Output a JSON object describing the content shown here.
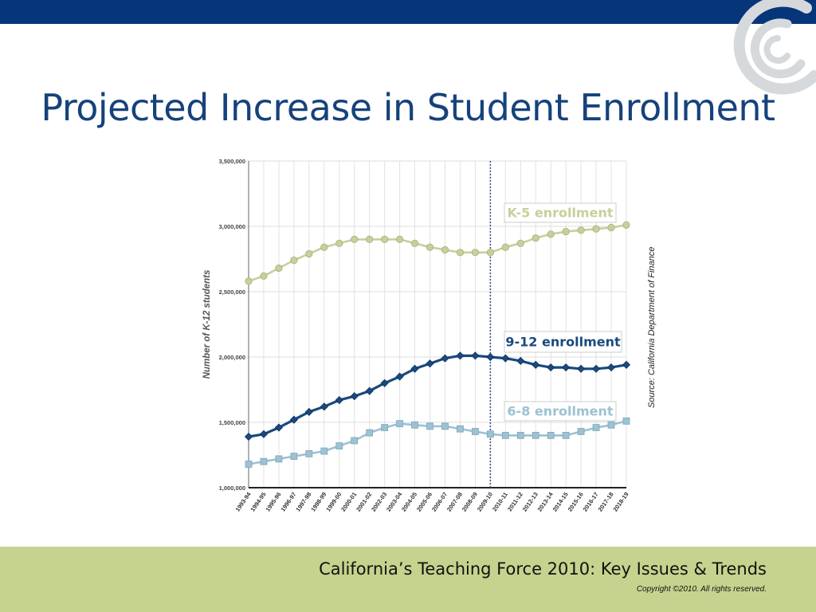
{
  "slide": {
    "title": "Projected Increase in Student Enrollment",
    "source": "Source: California Department of Finance",
    "footer_title": "California’s Teaching Force 2010: Key Issues & Trends",
    "footer_copyright": "Copyright ©2010. All rights reserved."
  },
  "colors": {
    "top_bar": "#06357a",
    "title": "#16427c",
    "footer": "#c6d38e",
    "k5": "#c8cf9c",
    "grade912": "#1a4a7f",
    "grade68": "#9cc2d3"
  },
  "chart_data": {
    "type": "line",
    "title": "",
    "xlabel": "",
    "ylabel": "Number of K-12 students",
    "ylim": [
      1000000,
      3500000
    ],
    "yticks": [
      "1,000,000",
      "1,500,000",
      "2,000,000",
      "2,500,000",
      "3,000,000",
      "3,500,000"
    ],
    "grid": true,
    "projection_start": "2009-10",
    "categories": [
      "1993-94",
      "1994-95",
      "1995-96",
      "1996-97",
      "1997-98",
      "1998-99",
      "1999-00",
      "2000-01",
      "2001-02",
      "2002-03",
      "2003-04",
      "2004-05",
      "2005-06",
      "2006-07",
      "2007-08",
      "2008-09",
      "2009-10",
      "2010-11",
      "2011-12",
      "2012-13",
      "2013-14",
      "2014-15",
      "2015-16",
      "2016-17",
      "2017-18",
      "2018-19"
    ],
    "series": [
      {
        "name": "K-5 enrollment",
        "color": "#c8cf9c",
        "marker": "circle",
        "values": [
          2580000,
          2620000,
          2680000,
          2740000,
          2790000,
          2840000,
          2870000,
          2900000,
          2900000,
          2900000,
          2900000,
          2870000,
          2840000,
          2820000,
          2800000,
          2800000,
          2800000,
          2840000,
          2870000,
          2910000,
          2940000,
          2960000,
          2970000,
          2980000,
          2990000,
          3010000
        ]
      },
      {
        "name": "9-12 enrollment",
        "color": "#1a4a7f",
        "marker": "diamond",
        "values": [
          1390000,
          1410000,
          1460000,
          1520000,
          1580000,
          1620000,
          1670000,
          1700000,
          1740000,
          1800000,
          1850000,
          1910000,
          1950000,
          1990000,
          2010000,
          2010000,
          2000000,
          1990000,
          1970000,
          1940000,
          1920000,
          1920000,
          1910000,
          1910000,
          1920000,
          1940000
        ]
      },
      {
        "name": "6-8 enrollment",
        "color": "#9cc2d3",
        "marker": "square",
        "values": [
          1180000,
          1200000,
          1220000,
          1240000,
          1260000,
          1280000,
          1320000,
          1360000,
          1420000,
          1460000,
          1490000,
          1480000,
          1470000,
          1470000,
          1450000,
          1430000,
          1410000,
          1400000,
          1400000,
          1400000,
          1400000,
          1400000,
          1430000,
          1460000,
          1480000,
          1510000
        ]
      }
    ]
  }
}
